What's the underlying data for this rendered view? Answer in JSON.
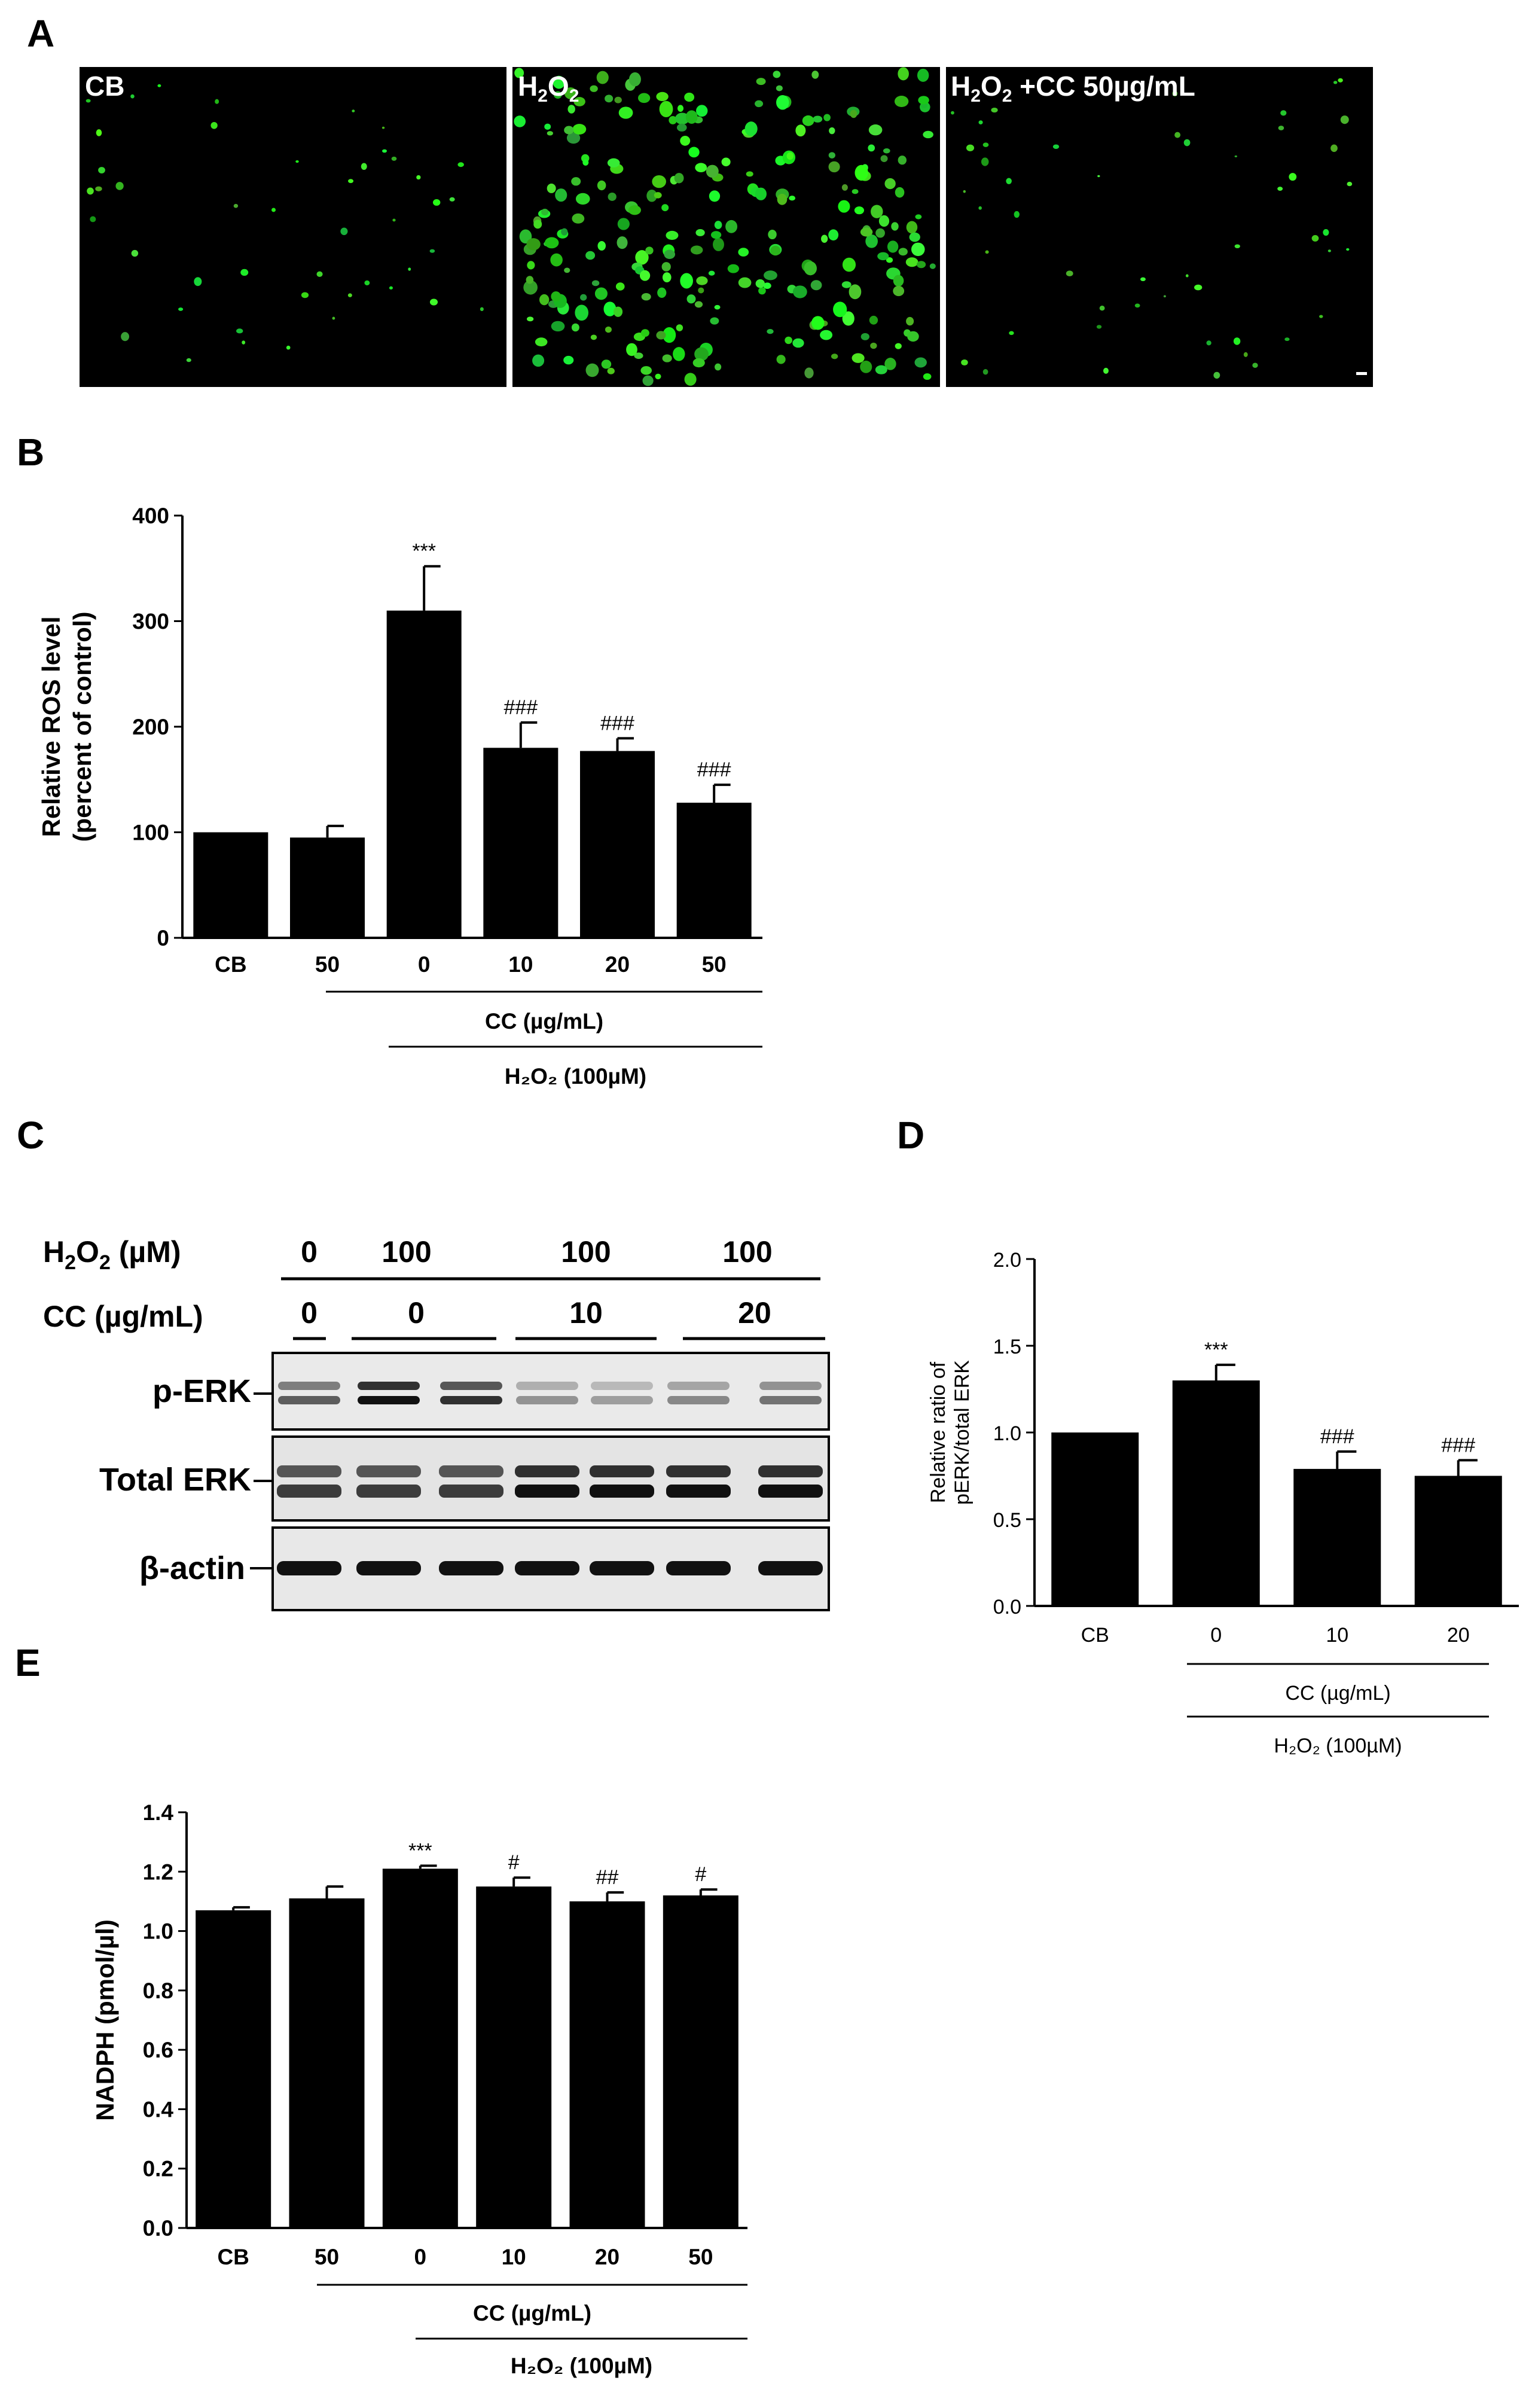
{
  "panels": {
    "A": {
      "letter": "A",
      "images": [
        {
          "label": "CB"
        },
        {
          "label": "H",
          "sub": "2",
          "label2": "O",
          "sub2": "2"
        },
        {
          "label": "H",
          "sub": "2",
          "label2": "O",
          "sub2": "2",
          "label3": " +CC  50µg/mL"
        }
      ]
    },
    "B": {
      "letter": "B"
    },
    "C": {
      "letter": "C",
      "h2o2_label": "H",
      "h2o2_sub": "2",
      "h2o2_label2": "O",
      "h2o2_sub2": "2",
      "h2o2_unit": " (µM)",
      "cc_label": "CC (µg/mL)",
      "h2o2_values": [
        "0",
        "100",
        "100",
        "100"
      ],
      "cc_values": [
        "0",
        "0",
        "10",
        "20"
      ],
      "rows": [
        "p-ERK",
        "Total ERK",
        "β-actin"
      ]
    },
    "D": {
      "letter": "D"
    },
    "E": {
      "letter": "E"
    }
  },
  "chart_data": [
    {
      "panel": "B",
      "type": "bar",
      "categories": [
        "CB",
        "50",
        "0",
        "10",
        "20",
        "50"
      ],
      "values": [
        100,
        95,
        310,
        180,
        177,
        128
      ],
      "errors": [
        0,
        11,
        42,
        24,
        12,
        17
      ],
      "annotations": [
        "",
        "",
        "***",
        "###",
        "###",
        "###"
      ],
      "ylabel": "Relative ROS level",
      "ylabel2": "(percent of control)",
      "ylim": [
        0,
        400
      ],
      "yticks": [
        "0",
        "100",
        "200",
        "300",
        "400"
      ],
      "group1_label": "CC (µg/mL)",
      "group2_label": "H₂O₂ (100µM)"
    },
    {
      "panel": "D",
      "type": "bar",
      "categories": [
        "CB",
        "0",
        "10",
        "20"
      ],
      "values": [
        1.0,
        1.3,
        0.79,
        0.75
      ],
      "errors": [
        0,
        0.09,
        0.1,
        0.09
      ],
      "annotations": [
        "",
        "***",
        "###",
        "###"
      ],
      "ylabel": "Relative ratio of",
      "ylabel2": "pERK/total ERK",
      "ylim": [
        0,
        2.0
      ],
      "yticks": [
        "0.0",
        "0.5",
        "1.0",
        "1.5",
        "2.0"
      ],
      "group1_label": "CC (µg/mL)",
      "group2_label": "H₂O₂ (100µM)"
    },
    {
      "panel": "E",
      "type": "bar",
      "categories": [
        "CB",
        "50",
        "0",
        "10",
        "20",
        "50"
      ],
      "values": [
        1.07,
        1.11,
        1.21,
        1.15,
        1.1,
        1.12
      ],
      "errors": [
        0.01,
        0.04,
        0.01,
        0.03,
        0.03,
        0.02
      ],
      "annotations": [
        "",
        "",
        "***",
        "#",
        "##",
        "#"
      ],
      "ylabel": "NADPH (pmol/µl)",
      "ylim": [
        0,
        1.4
      ],
      "yticks": [
        "0.0",
        "0.2",
        "0.4",
        "0.6",
        "0.8",
        "1.0",
        "1.2",
        "1.4"
      ],
      "group1_label": "CC (µg/mL)",
      "group2_label": "H₂O₂ (100µM)"
    }
  ]
}
